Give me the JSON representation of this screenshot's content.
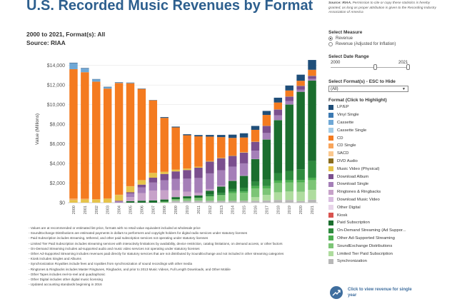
{
  "header": {
    "title": "U.S. Recorded Music Revenues by Format",
    "subtitle_line1": "2000 to 2021, Format(s): All",
    "subtitle_line2": "Source: RIAA"
  },
  "note": {
    "bold": "Source: RIAA.",
    "text": " Permission to cite or copy these statistics is hereby granted, as long as proper attribution is given to the Recording Industry Association of America"
  },
  "measure": {
    "title": "Select Measure",
    "options": [
      "Revenue",
      "Revenue (Adjusted for Inflation)"
    ],
    "selected": 0
  },
  "date_range": {
    "title": "Select Date Range",
    "start": "2000",
    "end": "2021"
  },
  "format_select": {
    "title": "Select Format(s) - ESC to Hide",
    "value": "(All)"
  },
  "legend": {
    "title": "Format (Click to Highlight)",
    "items": [
      {
        "label": "LP/EP",
        "color": "#1f4e79"
      },
      {
        "label": "Vinyl Single",
        "color": "#3c79b2"
      },
      {
        "label": "Cassette",
        "color": "#6fa8d6"
      },
      {
        "label": "Cassette Single",
        "color": "#a4cce6"
      },
      {
        "label": "CD",
        "color": "#f47b20"
      },
      {
        "label": "CD Single",
        "color": "#f8a55b"
      },
      {
        "label": "SACD",
        "color": "#fbc88e"
      },
      {
        "label": "DVD Audio",
        "color": "#8a6d1e"
      },
      {
        "label": "Music Video (Physical)",
        "color": "#e6c34a"
      },
      {
        "label": "Download Album",
        "color": "#7b4f8e"
      },
      {
        "label": "Download Single",
        "color": "#a57fb8"
      },
      {
        "label": "Ringtones & Ringbacks",
        "color": "#c7a2c9"
      },
      {
        "label": "Download Music Video",
        "color": "#d9bde0"
      },
      {
        "label": "Other Digital",
        "color": "#e8d5ea"
      },
      {
        "label": "Kiosk",
        "color": "#d9534f"
      },
      {
        "label": "Paid Subscription",
        "color": "#1b6e2e"
      },
      {
        "label": "On-Demand Streaming (Ad Suppor...",
        "color": "#2e8b3e"
      },
      {
        "label": "Other Ad-Supported Streaming",
        "color": "#4caf50"
      },
      {
        "label": "SoundExchange Distributions",
        "color": "#7cc576"
      },
      {
        "label": "Limited Tier Paid Subscription",
        "color": "#aedc9e"
      },
      {
        "label": "Synchronization",
        "color": "#b8b8b8"
      }
    ]
  },
  "footnotes": [
    "- Values are at recommended or estimated list price, formats with no retail value equivalent included at wholesale price",
    "- SoundExchange Distributions are estimated payments in dollars to performers and copyright holders for digital radio services under statutory licenses",
    "- Paid Subscription includes streaming, tethered, and other paid subscription services not operating under statutory licenses",
    "- Limited Tier Paid Subscription includes streaming services with interactivity limitations by availability, device restriction, catalog limitations, on demand access, or other factors",
    "- On-Demand Streaming includes ad-supported audio and music video services not operating under statutory licenses",
    "- Other Ad-Supported Streaming includes revenues paid directly for statutory services that are not distributed by SoundExchange and not included in other streaming categories",
    "- Kiosk includes Singles and Albums",
    "- Synchronization Royalties include fees and royalties from synchronization of sound recordings with other media",
    "- Ringtones & Ringbacks includes Master Ringtunes, Ringbacks, and prior to 2013 Music Videos, Full Length Downloads, and Other Mobile",
    "- Other Tapes includes reel-to-reel and quadraphonic",
    "- Other Digital includes other digital music licensing",
    "- Updated accounting standards beginning in 2016"
  ],
  "single_year": {
    "label": "Click to view revenue for single year"
  },
  "chart_data": {
    "type": "bar",
    "stacked": true,
    "ylabel": "Value (Millions)",
    "ylim": [
      0,
      15000
    ],
    "yticks": [
      0,
      2000,
      4000,
      6000,
      8000,
      10000,
      12000,
      14000
    ],
    "ytick_labels": [
      "$0",
      "$2,000",
      "$4,000",
      "$6,000",
      "$8,000",
      "$10,000",
      "$12,000",
      "$14,000"
    ],
    "categories": [
      "2000",
      "2001",
      "2002",
      "2003",
      "2004",
      "2005",
      "2006",
      "2007",
      "2008",
      "2009",
      "2010",
      "2011",
      "2012",
      "2013",
      "2014",
      "2015",
      "2016",
      "2017",
      "2018",
      "2019",
      "2020",
      "2021"
    ],
    "series": [
      {
        "name": "Synchronization",
        "color": "#b8b8b8",
        "values": [
          0,
          0,
          0,
          0,
          0,
          0,
          0,
          0,
          0,
          200,
          190,
          200,
          190,
          190,
          190,
          200,
          200,
          230,
          280,
          280,
          170,
          300
        ]
      },
      {
        "name": "Limited Tier Paid Subscription",
        "color": "#aedc9e",
        "values": [
          0,
          0,
          0,
          0,
          0,
          0,
          0,
          0,
          0,
          0,
          0,
          0,
          0,
          0,
          0,
          0,
          360,
          560,
          780,
          860,
          940,
          1000
        ]
      },
      {
        "name": "SoundExchange Distributions",
        "color": "#7cc576",
        "values": [
          0,
          0,
          0,
          0,
          0,
          0,
          0,
          0,
          100,
          160,
          250,
          290,
          460,
          590,
          770,
          800,
          880,
          650,
          950,
          910,
          950,
          1000
        ]
      },
      {
        "name": "Other Ad-Supported Streaming",
        "color": "#4caf50",
        "values": [
          0,
          0,
          0,
          0,
          0,
          0,
          0,
          0,
          0,
          0,
          0,
          0,
          0,
          0,
          160,
          150,
          250,
          250,
          250,
          250,
          250,
          250
        ]
      },
      {
        "name": "On-Demand Streaming (Ad Suppor...",
        "color": "#2e8b3e",
        "values": [
          0,
          0,
          0,
          0,
          0,
          0,
          0,
          0,
          0,
          0,
          0,
          0,
          170,
          220,
          300,
          380,
          450,
          650,
          760,
          910,
          1100,
          1700
        ]
      },
      {
        "name": "Paid Subscription",
        "color": "#1b6e2e",
        "values": [
          0,
          0,
          0,
          0,
          0,
          150,
          200,
          230,
          220,
          210,
          210,
          250,
          400,
          640,
          800,
          1200,
          2300,
          4100,
          5400,
          6800,
          7900,
          8200
        ]
      },
      {
        "name": "Kiosk",
        "color": "#d9534f",
        "values": [
          0,
          0,
          0,
          0,
          0,
          0,
          0,
          0,
          0,
          0,
          0,
          0,
          0,
          0,
          0,
          0,
          0,
          0,
          0,
          0,
          0,
          0
        ]
      },
      {
        "name": "Other Digital",
        "color": "#e8d5ea",
        "values": [
          0,
          0,
          0,
          0,
          0,
          0,
          0,
          0,
          0,
          0,
          0,
          0,
          0,
          0,
          0,
          0,
          0,
          0,
          0,
          0,
          0,
          0
        ]
      },
      {
        "name": "Ringtones & Ringbacks",
        "color": "#c7a2c9",
        "values": [
          0,
          0,
          0,
          0,
          0,
          420,
          780,
          1010,
          940,
          700,
          460,
          280,
          170,
          100,
          70,
          50,
          20,
          20,
          20,
          20,
          10,
          10
        ]
      },
      {
        "name": "Download Single",
        "color": "#a57fb8",
        "values": [
          0,
          0,
          0,
          0,
          140,
          360,
          580,
          810,
          1030,
          1170,
          1340,
          1500,
          1600,
          1570,
          1390,
          1230,
          850,
          650,
          470,
          340,
          220,
          180
        ]
      },
      {
        "name": "Download Album",
        "color": "#7b4f8e",
        "values": [
          0,
          0,
          0,
          0,
          50,
          130,
          280,
          500,
          640,
          750,
          880,
          1050,
          1200,
          1230,
          1090,
          1100,
          900,
          720,
          590,
          460,
          380,
          300
        ]
      },
      {
        "name": "Music Video (Physical)",
        "color": "#e6c34a",
        "values": [
          280,
          330,
          330,
          400,
          600,
          600,
          450,
          480,
          220,
          190,
          150,
          100,
          50,
          50,
          40,
          40,
          20,
          20,
          20,
          20,
          20,
          20
        ]
      },
      {
        "name": "CD Single",
        "color": "#f8a55b",
        "values": [
          140,
          80,
          20,
          40,
          20,
          20,
          10,
          10,
          0,
          0,
          0,
          0,
          0,
          0,
          0,
          0,
          0,
          0,
          0,
          0,
          0,
          0
        ]
      },
      {
        "name": "CD",
        "color": "#f47b20",
        "values": [
          13200,
          12900,
          12000,
          11200,
          11400,
          10500,
          9300,
          7400,
          5500,
          4300,
          3400,
          3100,
          2500,
          2100,
          1800,
          1500,
          1200,
          1100,
          700,
          600,
          500,
          600
        ]
      },
      {
        "name": "Cassette Single",
        "color": "#a4cce6",
        "values": [
          0,
          0,
          0,
          0,
          0,
          0,
          0,
          0,
          0,
          0,
          0,
          0,
          0,
          0,
          0,
          0,
          0,
          0,
          0,
          0,
          0,
          0
        ]
      },
      {
        "name": "Cassette",
        "color": "#6fa8d6",
        "values": [
          600,
          370,
          210,
          120,
          30,
          20,
          0,
          0,
          0,
          0,
          0,
          0,
          0,
          0,
          0,
          0,
          0,
          0,
          0,
          0,
          0,
          0
        ]
      },
      {
        "name": "Vinyl Single",
        "color": "#3c79b2",
        "values": [
          20,
          20,
          20,
          20,
          20,
          10,
          0,
          0,
          0,
          0,
          0,
          0,
          0,
          0,
          0,
          0,
          0,
          0,
          0,
          0,
          0,
          0
        ]
      },
      {
        "name": "LP/EP",
        "color": "#1f4e79",
        "values": [
          40,
          40,
          30,
          40,
          30,
          40,
          40,
          30,
          80,
          80,
          100,
          130,
          170,
          220,
          330,
          430,
          400,
          410,
          490,
          500,
          620,
          1000
        ]
      }
    ]
  }
}
